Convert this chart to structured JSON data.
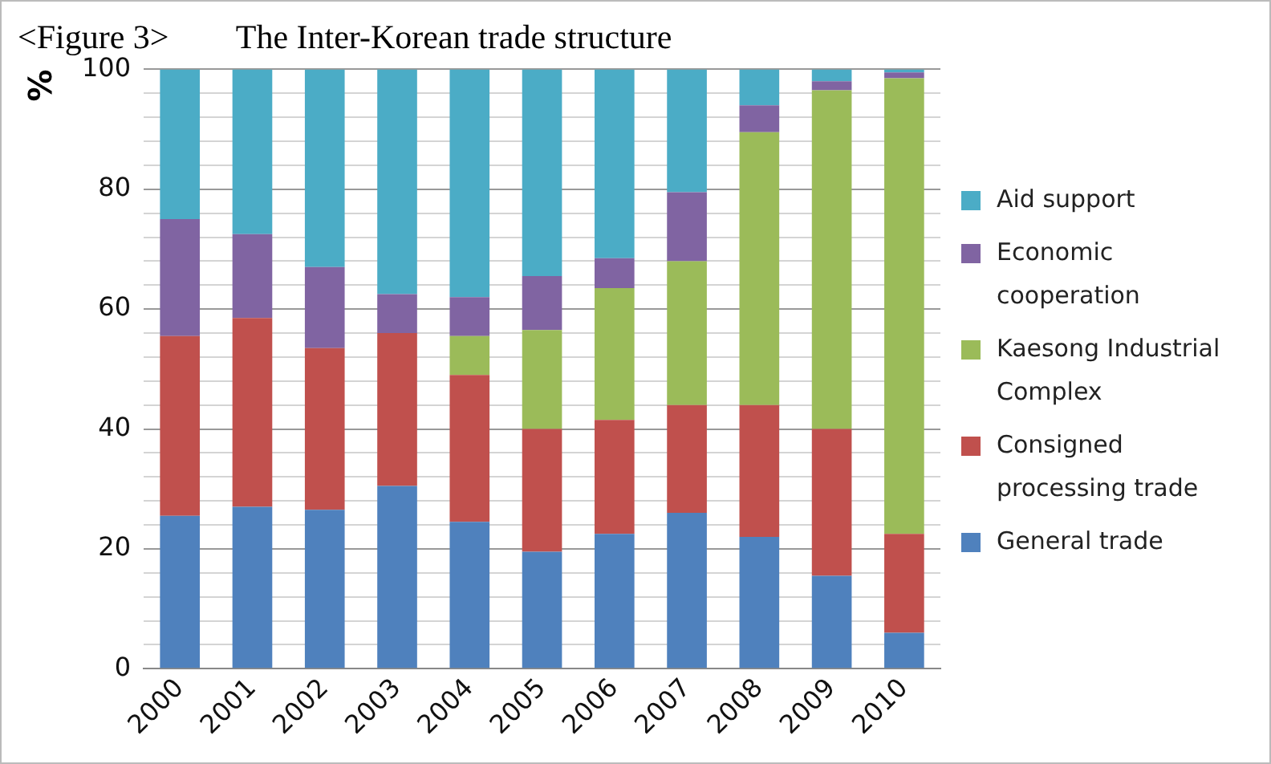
{
  "chart_data": {
    "type": "bar",
    "title": "<Figure 3>        The Inter-Korean trade structure",
    "ylabel": "%",
    "stacked": true,
    "legend": "right",
    "grid": "y",
    "categories": [
      "2000",
      "2001",
      "2002",
      "2003",
      "2004",
      "2005",
      "2006",
      "2007",
      "2008",
      "2009",
      "2010"
    ],
    "ylim": [
      0,
      100
    ],
    "yticks": [
      0,
      {
        "value": 4,
        "label": null
      },
      {
        "value": 8,
        "label": null
      },
      {
        "value": 12,
        "label": null
      },
      {
        "value": 16,
        "label": null
      },
      20,
      {
        "value": 24,
        "label": null
      },
      {
        "value": 28,
        "label": null
      },
      {
        "value": 32,
        "label": null
      },
      {
        "value": 36,
        "label": null
      },
      40,
      {
        "value": 44,
        "label": null
      },
      {
        "value": 48,
        "label": null
      },
      {
        "value": 52,
        "label": null
      },
      {
        "value": 56,
        "label": null
      },
      60,
      {
        "value": 64,
        "label": null
      },
      {
        "value": 68,
        "label": null
      },
      {
        "value": 72,
        "label": null
      },
      {
        "value": 76,
        "label": null
      },
      80,
      {
        "value": 84,
        "label": null
      },
      {
        "value": 88,
        "label": null
      },
      {
        "value": 92,
        "label": null
      },
      {
        "value": 96,
        "label": null
      },
      100
    ],
    "series": [
      {
        "name": "General trade",
        "color": "#4f81bd",
        "values": [
          25.5,
          27,
          26.5,
          30.5,
          24.5,
          19.5,
          22.5,
          26,
          22,
          15.5,
          6
        ]
      },
      {
        "name": "Consigned processing trade",
        "color": "#c0504d",
        "values": [
          30,
          31.5,
          27,
          25.5,
          24.5,
          20.5,
          19,
          18,
          22,
          24.5,
          16.5
        ]
      },
      {
        "name": "Kaesong Industrial Complex",
        "color": "#9bbb59",
        "values": [
          0,
          0,
          0,
          0,
          6.5,
          16.5,
          22,
          24,
          45.5,
          56.5,
          76
        ]
      },
      {
        "name": "Economic cooperation",
        "color": "#8064a2",
        "values": [
          19.5,
          14,
          13.5,
          6.5,
          6.5,
          9,
          5,
          11.5,
          4.5,
          1.5,
          1
        ]
      },
      {
        "name": "Aid support",
        "color": "#4bacc6",
        "values": [
          25,
          27.5,
          33,
          37.5,
          38,
          34.5,
          31.5,
          20.5,
          6,
          2,
          0.5
        ]
      }
    ]
  }
}
